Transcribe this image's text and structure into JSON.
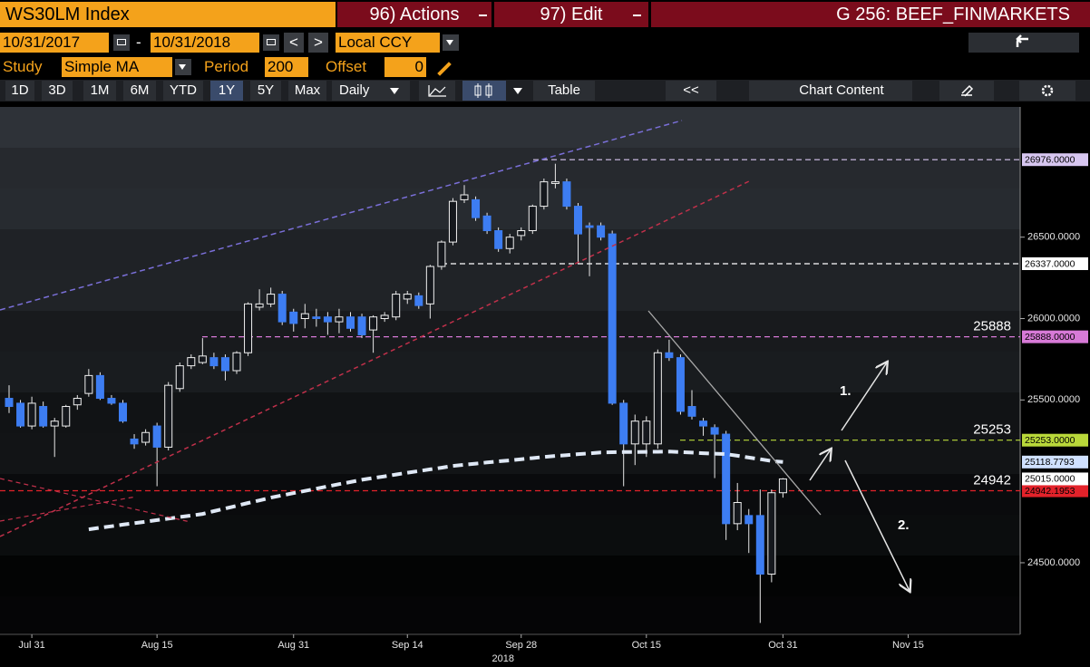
{
  "header": {
    "security": "WS30LM Index",
    "actions": "96) Actions",
    "edit": "97) Edit",
    "group": "G 256: BEEF_FINMARKETS",
    "start_date": "10/31/2017",
    "date_sep": "-",
    "end_date": "10/31/2018",
    "prev": "<",
    "next": ">",
    "currency": "Local CCY",
    "study_label": "Study",
    "study": "Simple MA",
    "period_label": "Period",
    "period": 200,
    "offset_label": "Offset",
    "offset": 0,
    "ranges": [
      "1D",
      "3D",
      "1M",
      "6M",
      "YTD",
      "1Y",
      "5Y",
      "Max"
    ],
    "frequency": "Daily",
    "table": "Table",
    "collapse": "<<",
    "chart_content": "Chart Content"
  },
  "chart_data": {
    "type": "candlestick",
    "x": [
      "2018-07-27",
      "2018-07-30",
      "2018-07-31",
      "2018-08-01",
      "2018-08-02",
      "2018-08-03",
      "2018-08-06",
      "2018-08-07",
      "2018-08-08",
      "2018-08-09",
      "2018-08-10",
      "2018-08-13",
      "2018-08-14",
      "2018-08-15",
      "2018-08-16",
      "2018-08-17",
      "2018-08-20",
      "2018-08-21",
      "2018-08-22",
      "2018-08-23",
      "2018-08-24",
      "2018-08-27",
      "2018-08-28",
      "2018-08-29",
      "2018-08-30",
      "2018-08-31",
      "2018-09-03",
      "2018-09-04",
      "2018-09-05",
      "2018-09-06",
      "2018-09-07",
      "2018-09-10",
      "2018-09-11",
      "2018-09-12",
      "2018-09-13",
      "2018-09-14",
      "2018-09-17",
      "2018-09-18",
      "2018-09-19",
      "2018-09-20",
      "2018-09-21",
      "2018-09-24",
      "2018-09-25",
      "2018-09-26",
      "2018-09-27",
      "2018-09-28",
      "2018-10-01",
      "2018-10-02",
      "2018-10-03",
      "2018-10-04",
      "2018-10-05",
      "2018-10-08",
      "2018-10-09",
      "2018-10-10",
      "2018-10-11",
      "2018-10-12",
      "2018-10-15",
      "2018-10-16",
      "2018-10-17",
      "2018-10-18",
      "2018-10-19",
      "2018-10-22",
      "2018-10-23",
      "2018-10-24",
      "2018-10-25",
      "2018-10-26",
      "2018-10-29",
      "2018-10-30",
      "2018-10-31"
    ],
    "open": [
      25510,
      25480,
      25340,
      25460,
      25340,
      25340,
      25470,
      25540,
      25650,
      25510,
      25480,
      25260,
      25240,
      25340,
      25210,
      25570,
      25710,
      25730,
      25760,
      25760,
      25680,
      25790,
      26070,
      26090,
      26150,
      26040,
      26000,
      26010,
      26010,
      25980,
      26010,
      26010,
      25930,
      26000,
      26010,
      26120,
      26140,
      26090,
      26320,
      26470,
      26730,
      26730,
      26630,
      26540,
      26430,
      26510,
      26540,
      26690,
      26830,
      26840,
      26690,
      26570,
      26570,
      26520,
      25480,
      25230,
      25230,
      25230,
      25790,
      25760,
      25460,
      25370,
      25330,
      25290,
      24740,
      24790,
      24790,
      24430,
      24930
    ],
    "high": [
      25590,
      25500,
      25520,
      25490,
      25390,
      25470,
      25530,
      25690,
      25670,
      25530,
      25500,
      25290,
      25320,
      25360,
      25610,
      25730,
      25780,
      25880,
      25790,
      25780,
      25800,
      26100,
      26180,
      26190,
      26170,
      26060,
      26090,
      26060,
      26040,
      26060,
      26040,
      26030,
      26020,
      26040,
      26170,
      26170,
      26160,
      26330,
      26480,
      26740,
      26820,
      26750,
      26650,
      26560,
      26520,
      26560,
      26700,
      26860,
      26951,
      26860,
      26710,
      26590,
      26590,
      26540,
      25500,
      25410,
      25400,
      25810,
      25870,
      25780,
      25560,
      25390,
      25350,
      25310,
      24990,
      24830,
      24950,
      24950,
      25020
    ],
    "low": [
      25420,
      25330,
      25320,
      25330,
      25150,
      25330,
      25440,
      25520,
      25500,
      25470,
      25360,
      25200,
      25220,
      24970,
      25190,
      25550,
      25690,
      25720,
      25690,
      25620,
      25660,
      25770,
      26050,
      26070,
      25960,
      25920,
      25940,
      25950,
      25900,
      25910,
      25920,
      25880,
      25790,
      25980,
      25990,
      26090,
      26060,
      26000,
      26300,
      26450,
      26710,
      26600,
      26520,
      26410,
      26400,
      26480,
      26520,
      26670,
      26800,
      26670,
      26340,
      26260,
      26480,
      25470,
      24970,
      25100,
      25150,
      25200,
      25740,
      25410,
      25380,
      25280,
      25020,
      24640,
      24700,
      24560,
      24130,
      24380,
      24900
    ],
    "close": [
      25460,
      25340,
      25480,
      25340,
      25370,
      25460,
      25510,
      25650,
      25510,
      25480,
      25370,
      25230,
      25300,
      25210,
      25590,
      25710,
      25760,
      25770,
      25710,
      25680,
      25790,
      26090,
      26090,
      26150,
      25980,
      25970,
      26030,
      26000,
      25980,
      26010,
      25940,
      25900,
      26010,
      26020,
      26150,
      26150,
      26080,
      26320,
      26470,
      26720,
      26760,
      26620,
      26540,
      26430,
      26500,
      26540,
      26690,
      26840,
      26840,
      26690,
      26520,
      26560,
      26500,
      25480,
      25230,
      25370,
      25370,
      25790,
      25760,
      25430,
      25400,
      25340,
      25290,
      24740,
      24870,
      24740,
      24430,
      24930,
      25015
    ],
    "up_color": "#f0f0f0",
    "down_color": "#3d7df2",
    "ma_values": [
      null,
      null,
      null,
      null,
      null,
      null,
      null,
      24705,
      24715,
      24724,
      24734,
      24743,
      24752,
      24762,
      24771,
      24781,
      24790,
      24800,
      24817,
      24833,
      24850,
      24867,
      24883,
      24900,
      24914,
      24928,
      24941,
      24955,
      24969,
      24983,
      24996,
      25010,
      25021,
      25031,
      25042,
      25053,
      25063,
      25074,
      25084,
      25095,
      25102,
      25109,
      25116,
      25123,
      25129,
      25136,
      25143,
      25150,
      25156,
      25161,
      25167,
      25172,
      25178,
      25179,
      25180,
      25180,
      25181,
      25182,
      25183,
      25180,
      25177,
      25173,
      25170,
      25167,
      25157,
      25146,
      25136,
      25125,
      25118.7793
    ],
    "ma_color": "#dfe8f5",
    "ma_label": "25118.7793",
    "last_price": {
      "value": 25015,
      "label": "25015.0000"
    },
    "levels": [
      {
        "value": 26976,
        "label": "26976.0000",
        "color": "#d7c6f0"
      },
      {
        "value": 26337,
        "label": "26337.0000",
        "color": "#ffffff"
      },
      {
        "value": 25888,
        "label": "25888.0000",
        "color": "#d77ad7",
        "annotation": "25888"
      },
      {
        "value": 25253,
        "label": "25253.0000",
        "color": "#b9d83a",
        "annotation": "25253"
      },
      {
        "value": 24942.1953,
        "label": "24942.1953",
        "color": "#e3222a",
        "annotation": "24942"
      }
    ],
    "annotations": [
      "1.",
      "2."
    ],
    "ylim": [
      24060,
      27300
    ],
    "yticks": [
      {
        "value": 26500,
        "label": "26500.0000"
      },
      {
        "value": 26000,
        "label": "26000.0000"
      },
      {
        "value": 25500,
        "label": "25500.0000"
      },
      {
        "value": 24500,
        "label": "24500.0000"
      }
    ],
    "xticks": [
      {
        "value": "2018-07-31",
        "label": "Jul 31"
      },
      {
        "value": "2018-08-15",
        "label": "Aug 15"
      },
      {
        "value": "2018-08-31",
        "label": "Aug 31"
      },
      {
        "value": "2018-09-14",
        "label": "Sep 14"
      },
      {
        "value": "2018-09-28",
        "label": "Sep 28"
      },
      {
        "value": "2018-10-15",
        "label": "Oct 15"
      },
      {
        "value": "2018-10-31",
        "label": "Oct 31"
      },
      {
        "value": "2018-11-15",
        "label": "Nov 15"
      }
    ],
    "x_year": "2018"
  }
}
